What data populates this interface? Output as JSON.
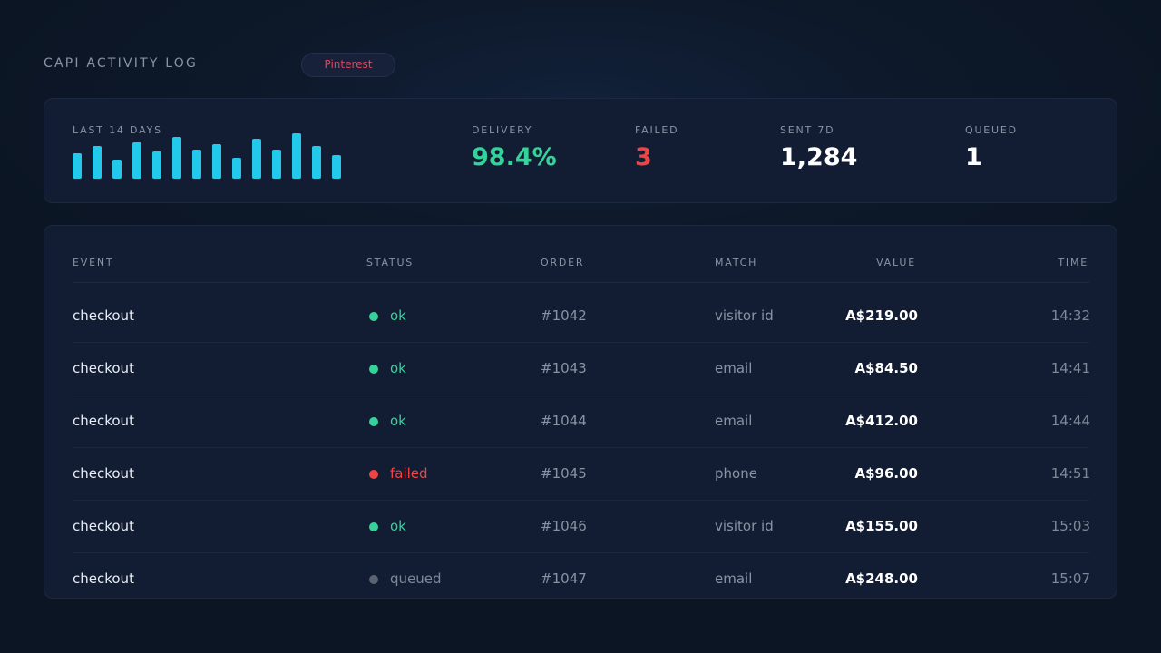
{
  "header": {
    "title": "CAPI ACTIVITY LOG",
    "platform": "Pinterest"
  },
  "summary": {
    "sparkline_label": "LAST 14 DAYS",
    "sparkline_values": [
      27,
      35,
      21,
      39,
      29,
      45,
      31,
      37,
      23,
      43,
      31,
      49,
      35,
      25
    ],
    "stats": [
      {
        "label": "DELIVERY",
        "value": "98.4%",
        "color": "#34d399"
      },
      {
        "label": "FAILED",
        "value": "3",
        "color": "#ef4444"
      },
      {
        "label": "SENT 7D",
        "value": "1,284",
        "color": "#ffffff"
      },
      {
        "label": "QUEUED",
        "value": "1",
        "color": "#ffffff"
      }
    ]
  },
  "table": {
    "columns": [
      "EVENT",
      "STATUS",
      "ORDER",
      "MATCH",
      "VALUE",
      "TIME"
    ],
    "rows": [
      {
        "event": "checkout",
        "status": "ok",
        "order": "#1042",
        "match": "visitor id",
        "value": "A$219.00",
        "time": "14:32"
      },
      {
        "event": "checkout",
        "status": "ok",
        "order": "#1043",
        "match": "email",
        "value": "A$84.50",
        "time": "14:41"
      },
      {
        "event": "checkout",
        "status": "ok",
        "order": "#1044",
        "match": "email",
        "value": "A$412.00",
        "time": "14:44"
      },
      {
        "event": "checkout",
        "status": "failed",
        "order": "#1045",
        "match": "phone",
        "value": "A$96.00",
        "time": "14:51"
      },
      {
        "event": "checkout",
        "status": "ok",
        "order": "#1046",
        "match": "visitor id",
        "value": "A$155.00",
        "time": "15:03"
      },
      {
        "event": "checkout",
        "status": "queued",
        "order": "#1047",
        "match": "email",
        "value": "A$248.00",
        "time": "15:07"
      }
    ]
  },
  "status_colors": {
    "ok": "#34d399",
    "failed": "#ef4444",
    "queued": "#5b6272"
  },
  "status_text_colors": {
    "ok": "#34d399",
    "failed": "#ef4444",
    "queued": "#7f8898"
  }
}
